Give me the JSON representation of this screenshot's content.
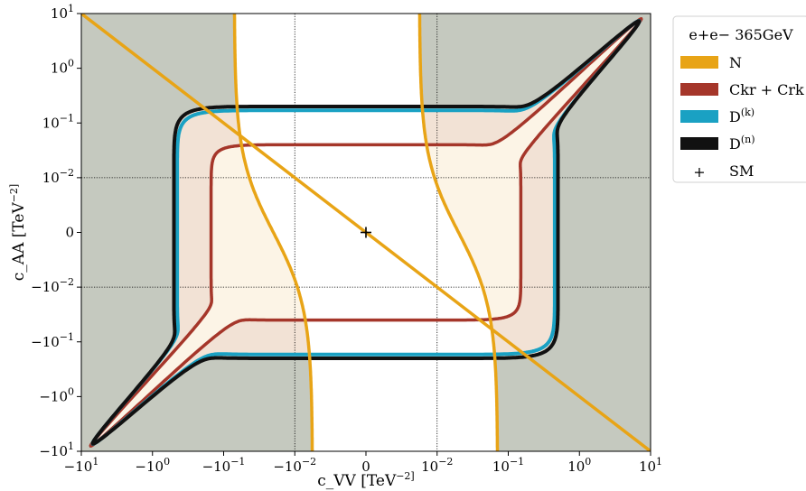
{
  "chart_data": {
    "type": "line",
    "xlabel": "c_VV [TeV^-2]",
    "ylabel": "c_AA [TeV^-2]",
    "x_scale": "symlog",
    "y_scale": "symlog",
    "linthresh": 0.01,
    "xlim": [
      -10,
      10
    ],
    "ylim": [
      -10,
      10
    ],
    "x_ticks": [
      {
        "value": -10,
        "label": "−10^1"
      },
      {
        "value": -1,
        "label": "−10^0"
      },
      {
        "value": -0.1,
        "label": "−10^−1"
      },
      {
        "value": -0.01,
        "label": "−10^−2"
      },
      {
        "value": 0,
        "label": "0"
      },
      {
        "value": 0.01,
        "label": "10^−2"
      },
      {
        "value": 0.1,
        "label": "10^−1"
      },
      {
        "value": 1,
        "label": "10^0"
      },
      {
        "value": 10,
        "label": "10^1"
      }
    ],
    "y_ticks": [
      {
        "value": 10,
        "label": "10^1"
      },
      {
        "value": 1,
        "label": "10^0"
      },
      {
        "value": 0.1,
        "label": "10^−1"
      },
      {
        "value": 0.01,
        "label": "10^−2"
      },
      {
        "value": 0,
        "label": "0"
      },
      {
        "value": -0.01,
        "label": "−10^−2"
      },
      {
        "value": -0.1,
        "label": "−10^−1"
      },
      {
        "value": -1,
        "label": "−10^0"
      },
      {
        "value": -10,
        "label": "−10^1"
      }
    ],
    "grid": "dotted lines at ±10^−2",
    "legend_title": "e+e− 365GeV",
    "legend_position": "outside top-right",
    "series": [
      {
        "name": "N",
        "color": "#e8a416",
        "boundary": "hourglass",
        "shape": {
          "half_width": 0.02,
          "corner": 0.00035
        },
        "asymptote": {
          "x1": -10,
          "y1": 10,
          "x2": 10,
          "y2": -10
        }
      },
      {
        "name": "C_kr + C_rk",
        "color": "#a5362a",
        "boundary": "closed",
        "shape": {
          "half_width": 0.15,
          "plateau": 0.04,
          "corner": 0.012,
          "tip": [
            10,
            10
          ]
        }
      },
      {
        "name": "D^(k)",
        "color": "#1aa1c3",
        "boundary": "closed",
        "shape": {
          "half_width": 0.45,
          "plateau": 0.17,
          "corner": 0.09,
          "tip": [
            10,
            10
          ]
        }
      },
      {
        "name": "D^(n)",
        "color": "#111111",
        "boundary": "closed",
        "shape": {
          "half_width": 0.5,
          "plateau": 0.2,
          "corner": 0.1,
          "tip": [
            10,
            10
          ]
        }
      }
    ],
    "points": [
      {
        "name": "SM",
        "x": 0,
        "y": 0,
        "marker": "+"
      }
    ],
    "colors": {
      "excluded": "#c5c9bf",
      "region_outer": "#f2e2d5",
      "region_inner": "#fcf4e6",
      "allowed": "#ffffff"
    }
  }
}
